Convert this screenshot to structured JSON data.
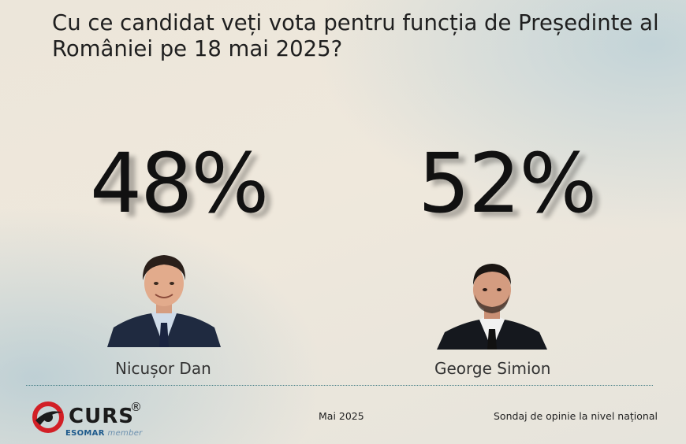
{
  "question": "Cu ce candidat veți vota pentru funcția de Președinte al României pe 18 mai 2025?",
  "candidates": [
    {
      "name": "Nicușor Dan",
      "percent": "48%"
    },
    {
      "name": "George Simion",
      "percent": "52%"
    }
  ],
  "footer": {
    "brand": "CURS",
    "registered": "®",
    "esomar": "ESOMAR",
    "esomar_suffix": "member",
    "date": "Mai 2025",
    "note": "Sondaj de opinie la nivel național"
  },
  "colors": {
    "text": "#111111",
    "divider": "#3f7a82",
    "logo_red": "#d21f26",
    "esomar_blue": "#1e5a8c"
  },
  "icons": [
    "curs-logo-icon"
  ]
}
